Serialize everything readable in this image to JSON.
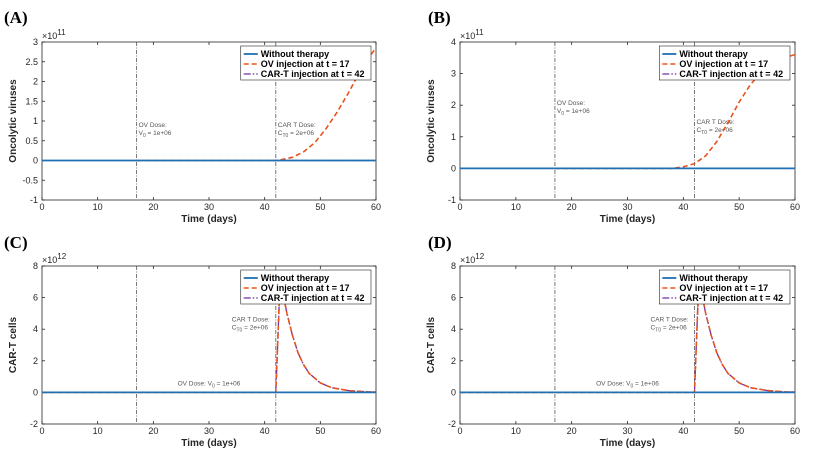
{
  "colors": {
    "without_therapy": "#1f6fb3",
    "ov_injection": "#e8541e",
    "cart_injection": "#7030a0",
    "marker_line": "#555555"
  },
  "chart_data": [
    {
      "panel": "(A)",
      "type": "line",
      "xlabel": "Time (days)",
      "ylabel": "Oncolytic viruses",
      "xlim": [
        0,
        60
      ],
      "ylim": [
        -1,
        3
      ],
      "exponent": "11",
      "xticks": [
        "0",
        "10",
        "20",
        "30",
        "40",
        "50",
        "60"
      ],
      "yticks": [
        "-1",
        "-0.5",
        "0",
        "0.5",
        "1",
        "1.5",
        "2",
        "2.5",
        "3"
      ],
      "ytick_values": [
        -1,
        -0.5,
        0,
        0.5,
        1,
        1.5,
        2,
        2.5,
        3
      ],
      "legend": [
        "Without therapy",
        "OV injection at t = 17",
        "CAR-T injection at t = 42"
      ],
      "markers": [
        {
          "x": 17,
          "y": 0.85,
          "lines": [
            "OV Dose:",
            "V",
            "0",
            " = 1e+06"
          ]
        },
        {
          "x": 42,
          "y": 0.85,
          "lines": [
            "CAR T Dose:",
            "C",
            "T0",
            " = 2e+06"
          ]
        }
      ],
      "series": [
        {
          "name": "Without therapy",
          "x": [
            0,
            60
          ],
          "y": [
            0,
            0
          ]
        },
        {
          "name": "OV injection at t = 17",
          "x": [
            17,
            42,
            43,
            45,
            47,
            49,
            51,
            53,
            55,
            57,
            59,
            60
          ],
          "y": [
            0,
            0.0,
            0.02,
            0.08,
            0.22,
            0.45,
            0.8,
            1.22,
            1.7,
            2.22,
            2.66,
            2.85
          ]
        },
        {
          "name": "CAR-T injection at t = 42",
          "x": [
            42,
            60
          ],
          "y": [
            0,
            0
          ]
        }
      ]
    },
    {
      "panel": "(B)",
      "type": "line",
      "xlabel": "Time (days)",
      "ylabel": "Oncolytic viruses",
      "xlim": [
        0,
        60
      ],
      "ylim": [
        -1,
        4
      ],
      "exponent": "11",
      "xticks": [
        "0",
        "10",
        "20",
        "30",
        "40",
        "50",
        "60"
      ],
      "yticks": [
        "-1",
        "0",
        "1",
        "2",
        "3",
        "4"
      ],
      "ytick_values": [
        -1,
        0,
        1,
        2,
        3,
        4
      ],
      "legend": [
        "Without therapy",
        "OV injection at t = 17",
        "CAR-T injection at t = 42"
      ],
      "markers": [
        {
          "x": 17,
          "y": 2.0,
          "lines": [
            "OV Dose:",
            "V",
            "0",
            " = 1e+06"
          ]
        },
        {
          "x": 42,
          "y": 1.4,
          "lines": [
            "CAR T Dose:",
            "C",
            "T0",
            " = 2e+06"
          ]
        }
      ],
      "series": [
        {
          "name": "Without therapy",
          "x": [
            0,
            60
          ],
          "y": [
            0,
            0
          ]
        },
        {
          "name": "OV injection at t = 17",
          "x": [
            17,
            38,
            40,
            42,
            44,
            46,
            48,
            50,
            52,
            54,
            56,
            58,
            60
          ],
          "y": [
            0,
            0.0,
            0.05,
            0.15,
            0.4,
            0.85,
            1.45,
            2.1,
            2.65,
            3.05,
            3.32,
            3.5,
            3.6
          ]
        },
        {
          "name": "CAR-T injection at t = 42",
          "x": [
            42,
            60
          ],
          "y": [
            0,
            0
          ]
        }
      ]
    },
    {
      "panel": "(C)",
      "type": "line",
      "xlabel": "Time (days)",
      "ylabel": "CAR-T cells",
      "xlim": [
        0,
        60
      ],
      "ylim": [
        -2,
        8
      ],
      "exponent": "12",
      "xticks": [
        "0",
        "10",
        "20",
        "30",
        "40",
        "50",
        "60"
      ],
      "yticks": [
        "-2",
        "0",
        "2",
        "4",
        "6",
        "8"
      ],
      "ytick_values": [
        -2,
        0,
        2,
        4,
        6,
        8
      ],
      "legend": [
        "Without therapy",
        "OV injection at t = 17",
        "CAR-T injection at t = 42"
      ],
      "markers": [
        {
          "x": 30,
          "y": 0.45,
          "lines": [
            "OV Dose: V",
            "0",
            " = 1e+06"
          ],
          "inline": true
        },
        {
          "x": 42,
          "y": 4.5,
          "lines": [
            "CAR T Dose:",
            "C",
            "T0",
            " = 2e+06"
          ],
          "left": true
        }
      ],
      "series": [
        {
          "name": "Without therapy",
          "x": [
            0,
            60
          ],
          "y": [
            0,
            0
          ]
        },
        {
          "name": "OV injection at t = 17",
          "x": [
            0,
            42,
            42.6,
            43,
            44,
            45,
            46,
            47,
            48,
            50,
            52,
            55,
            58,
            60
          ],
          "y": [
            0,
            0,
            5.5,
            6.8,
            5.0,
            3.6,
            2.5,
            1.75,
            1.2,
            0.6,
            0.3,
            0.12,
            0.04,
            0.02
          ]
        },
        {
          "name": "CAR-T injection at t = 42",
          "x": [
            0,
            42,
            42.6,
            43,
            44,
            45,
            46,
            47,
            48,
            50,
            52,
            55,
            58,
            60
          ],
          "y": [
            0,
            0,
            5.5,
            6.8,
            5.0,
            3.6,
            2.5,
            1.75,
            1.2,
            0.6,
            0.3,
            0.12,
            0.04,
            0.02
          ]
        }
      ]
    },
    {
      "panel": "(D)",
      "type": "line",
      "xlabel": "Time (days)",
      "ylabel": "CAR-T cells",
      "xlim": [
        0,
        60
      ],
      "ylim": [
        -2,
        8
      ],
      "exponent": "12",
      "xticks": [
        "0",
        "10",
        "20",
        "30",
        "40",
        "50",
        "60"
      ],
      "yticks": [
        "-2",
        "0",
        "2",
        "4",
        "6",
        "8"
      ],
      "ytick_values": [
        -2,
        0,
        2,
        4,
        6,
        8
      ],
      "legend": [
        "Without therapy",
        "OV injection at t = 17",
        "CAR-T injection at t = 42"
      ],
      "markers": [
        {
          "x": 30,
          "y": 0.45,
          "lines": [
            "OV Dose: V",
            "0",
            " = 1e+06"
          ],
          "inline": true
        },
        {
          "x": 42,
          "y": 4.5,
          "lines": [
            "CAR T Dose:",
            "C",
            "T0",
            " = 2e+06"
          ],
          "left": true
        }
      ],
      "series": [
        {
          "name": "Without therapy",
          "x": [
            0,
            60
          ],
          "y": [
            0,
            0
          ]
        },
        {
          "name": "OV injection at t = 17",
          "x": [
            0,
            42,
            42.6,
            43,
            44,
            45,
            46,
            47,
            48,
            50,
            52,
            55,
            58,
            60
          ],
          "y": [
            0,
            0,
            5.5,
            6.8,
            5.0,
            3.6,
            2.5,
            1.75,
            1.2,
            0.6,
            0.3,
            0.12,
            0.04,
            0.02
          ]
        },
        {
          "name": "CAR-T injection at t = 42",
          "x": [
            0,
            42,
            42.6,
            43,
            44,
            45,
            46,
            47,
            48,
            50,
            52,
            55,
            58,
            60
          ],
          "y": [
            0,
            0,
            5.5,
            6.8,
            5.0,
            3.6,
            2.5,
            1.75,
            1.2,
            0.6,
            0.3,
            0.12,
            0.04,
            0.02
          ]
        }
      ]
    }
  ]
}
